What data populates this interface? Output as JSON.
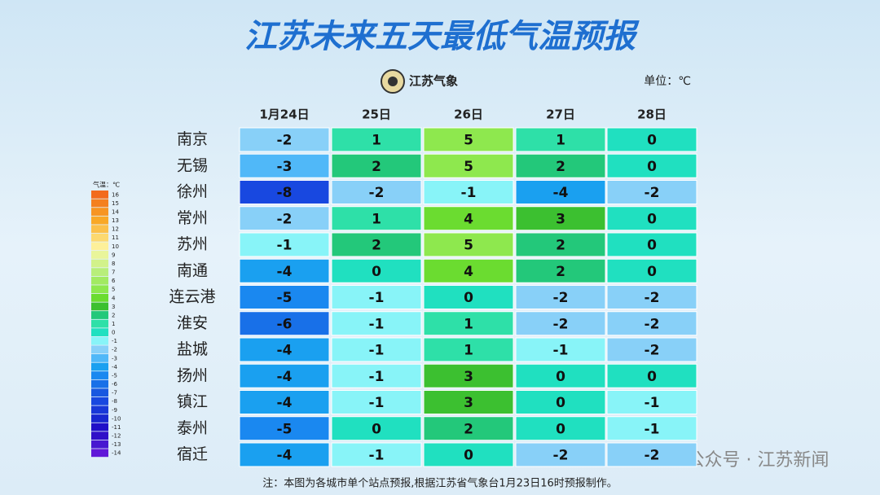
{
  "header": {
    "title": "江苏未来五天最低气温预报",
    "logo_text": "江苏气象",
    "unit": "单位：℃"
  },
  "table": {
    "columns": [
      "1月24日",
      "25日",
      "26日",
      "27日",
      "28日"
    ],
    "rows": [
      {
        "city": "南京",
        "values": [
          -2,
          1,
          5,
          1,
          0
        ]
      },
      {
        "city": "无锡",
        "values": [
          -3,
          2,
          5,
          2,
          0
        ]
      },
      {
        "city": "徐州",
        "values": [
          -8,
          -2,
          -1,
          -4,
          -2
        ]
      },
      {
        "city": "常州",
        "values": [
          -2,
          1,
          4,
          3,
          0
        ]
      },
      {
        "city": "苏州",
        "values": [
          -1,
          2,
          5,
          2,
          0
        ]
      },
      {
        "city": "南通",
        "values": [
          -4,
          0,
          4,
          2,
          0
        ]
      },
      {
        "city": "连云港",
        "values": [
          -5,
          -1,
          0,
          -2,
          -2
        ]
      },
      {
        "city": "淮安",
        "values": [
          -6,
          -1,
          1,
          -2,
          -2
        ]
      },
      {
        "city": "盐城",
        "values": [
          -4,
          -1,
          1,
          -1,
          -2
        ]
      },
      {
        "city": "扬州",
        "values": [
          -4,
          -1,
          3,
          0,
          0
        ]
      },
      {
        "city": "镇江",
        "values": [
          -4,
          -1,
          3,
          0,
          -1
        ]
      },
      {
        "city": "泰州",
        "values": [
          -5,
          0,
          2,
          0,
          -1
        ]
      },
      {
        "city": "宿迁",
        "values": [
          -4,
          -1,
          0,
          -2,
          -2
        ]
      }
    ]
  },
  "legend": {
    "title": "气温：℃",
    "items": [
      {
        "value": 16,
        "color": "#f26b1d"
      },
      {
        "value": 15,
        "color": "#f4801f"
      },
      {
        "value": 14,
        "color": "#f79522"
      },
      {
        "value": 13,
        "color": "#f9a826"
      },
      {
        "value": 12,
        "color": "#fbc04a"
      },
      {
        "value": 11,
        "color": "#fcd970"
      },
      {
        "value": 10,
        "color": "#fdf09a"
      },
      {
        "value": 9,
        "color": "#e9f59a"
      },
      {
        "value": 8,
        "color": "#d2f28a"
      },
      {
        "value": 7,
        "color": "#b8ee7a"
      },
      {
        "value": 6,
        "color": "#a2ea62"
      },
      {
        "value": 5,
        "color": "#8ee84e"
      },
      {
        "value": 4,
        "color": "#6bdc30"
      },
      {
        "value": 3,
        "color": "#3cc030"
      },
      {
        "value": 2,
        "color": "#23c87a"
      },
      {
        "value": 1,
        "color": "#2ee0a8"
      },
      {
        "value": 0,
        "color": "#20e0c0"
      },
      {
        "value": -1,
        "color": "#88f4f8"
      },
      {
        "value": -2,
        "color": "#88d0f8"
      },
      {
        "value": -3,
        "color": "#50b8f8"
      },
      {
        "value": -4,
        "color": "#1aa0f0"
      },
      {
        "value": -5,
        "color": "#1a88f0"
      },
      {
        "value": -6,
        "color": "#1870e8"
      },
      {
        "value": -7,
        "color": "#1858e0"
      },
      {
        "value": -8,
        "color": "#1848e0"
      },
      {
        "value": -9,
        "color": "#1838d8"
      },
      {
        "value": -10,
        "color": "#1828d0"
      },
      {
        "value": -11,
        "color": "#2010c8"
      },
      {
        "value": -12,
        "color": "#3010c8"
      },
      {
        "value": -13,
        "color": "#4818d0"
      },
      {
        "value": -14,
        "color": "#6018d8"
      }
    ]
  },
  "note": "注：本图为各城市单个站点预报,根据江苏省气象台1月23日16时预报制作。",
  "watermark": "公众号 · 江苏新闻"
}
